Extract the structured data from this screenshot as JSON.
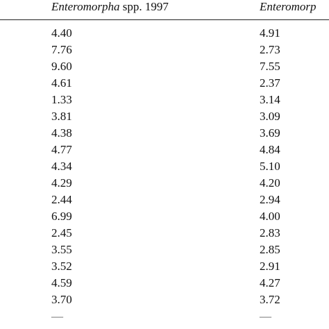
{
  "header": {
    "col1": {
      "italic": "Enteromorpha",
      "rest": " spp. 1997"
    },
    "col2": {
      "italic": "Enteromorp",
      "rest": ""
    }
  },
  "rows": [
    [
      "4.40",
      "4.91"
    ],
    [
      "7.76",
      "2.73"
    ],
    [
      "9.60",
      "7.55"
    ],
    [
      "4.61",
      "2.37"
    ],
    [
      "1.33",
      "3.14"
    ],
    [
      "3.81",
      "3.09"
    ],
    [
      "4.38",
      "3.69"
    ],
    [
      "4.77",
      "4.84"
    ],
    [
      "4.34",
      "5.10"
    ],
    [
      "4.29",
      "4.20"
    ],
    [
      "2.44",
      "2.94"
    ],
    [
      "6.99",
      "4.00"
    ],
    [
      "2.45",
      "2.83"
    ],
    [
      "3.55",
      "2.85"
    ],
    [
      "3.52",
      "2.91"
    ],
    [
      "4.59",
      "4.27"
    ],
    [
      "3.70",
      "3.72"
    ]
  ],
  "last_row": [
    "—",
    "—"
  ]
}
